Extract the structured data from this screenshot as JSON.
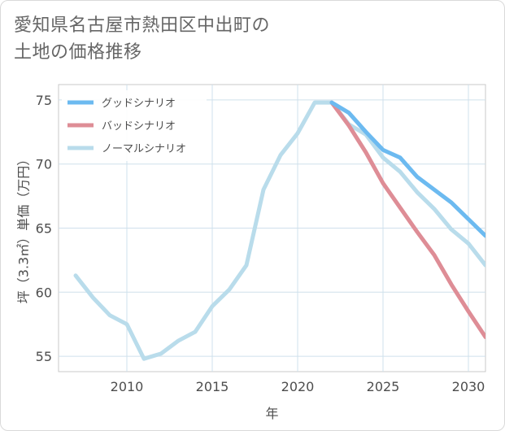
{
  "title": {
    "line1": "愛知県名古屋市熱田区中出町の",
    "line2": "土地の価格推移"
  },
  "chart_data": {
    "type": "line",
    "xlabel": "年",
    "ylabel": "坪（3.3㎡）単価（万円）",
    "xlim": [
      2006,
      2031
    ],
    "ylim": [
      53.8,
      76.2
    ],
    "xticks": [
      2010,
      2015,
      2020,
      2025,
      2030
    ],
    "yticks": [
      55,
      60,
      65,
      70,
      75
    ],
    "grid": true,
    "legend_position": "top-left",
    "series": [
      {
        "name": "グッドシナリオ",
        "color": "#6cbaf0",
        "x": [
          2022,
          2023,
          2024,
          2025,
          2026,
          2027,
          2028,
          2029,
          2030,
          2031
        ],
        "y": [
          74.8,
          74.0,
          72.5,
          71.1,
          70.5,
          69.0,
          68.0,
          67.0,
          65.7,
          64.4
        ]
      },
      {
        "name": "バッドシナリオ",
        "color": "#de8d96",
        "x": [
          2022,
          2023,
          2024,
          2025,
          2026,
          2027,
          2028,
          2029,
          2030,
          2031
        ],
        "y": [
          74.8,
          73.0,
          70.9,
          68.5,
          66.6,
          64.7,
          62.9,
          60.6,
          58.5,
          56.5
        ]
      },
      {
        "name": "ノーマルシナリオ",
        "color": "#b9dceb",
        "x": [
          2007,
          2008,
          2009,
          2010,
          2011,
          2012,
          2013,
          2014,
          2015,
          2016,
          2017,
          2018,
          2019,
          2020,
          2021,
          2022,
          2023,
          2024,
          2025,
          2026,
          2027,
          2028,
          2029,
          2030,
          2031
        ],
        "y": [
          61.3,
          59.6,
          58.2,
          57.5,
          54.8,
          55.2,
          56.2,
          56.9,
          58.9,
          60.2,
          62.1,
          68.0,
          70.7,
          72.4,
          74.8,
          74.8,
          73.1,
          72.3,
          70.5,
          69.4,
          67.8,
          66.5,
          64.9,
          63.8,
          62.1
        ]
      }
    ]
  }
}
